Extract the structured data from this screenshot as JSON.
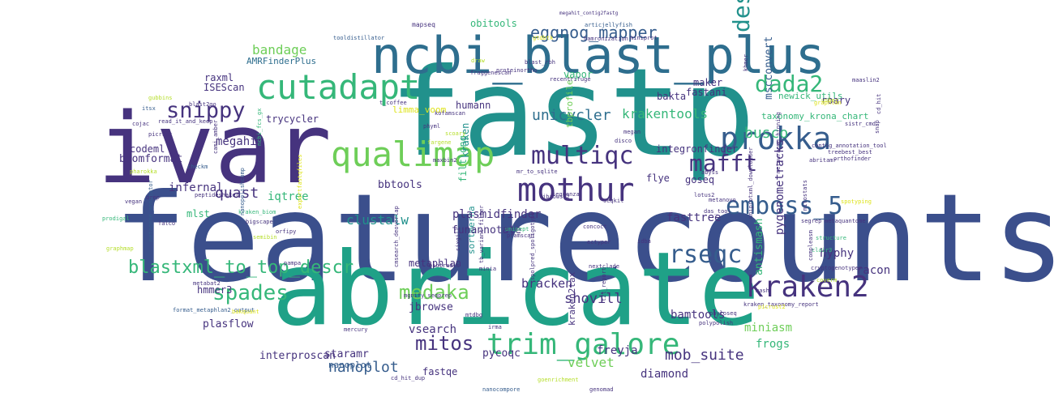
{
  "palette": {
    "navy": "#3b4f8c",
    "purple": "#46337e",
    "blue": "#365d8d",
    "steel": "#2e6e8e",
    "teal": "#21918c",
    "tealgreen": "#1fa187",
    "green": "#35b779",
    "lime": "#6ece58",
    "yellowgreen": "#b5de2b",
    "yellow": "#dde318"
  },
  "words": [
    {
      "text": "featurecounts",
      "color": "navy"
    },
    {
      "text": "fastp",
      "color": "teal"
    },
    {
      "text": "ivar",
      "color": "purple"
    },
    {
      "text": "abricate",
      "color": "tealgreen"
    },
    {
      "text": "ncbi_blast_plus",
      "color": "steel"
    },
    {
      "text": "prokka",
      "color": "blue"
    },
    {
      "text": "cutadapt",
      "color": "green"
    },
    {
      "text": "qualimap",
      "color": "lime"
    },
    {
      "text": "mothur",
      "color": "purple"
    },
    {
      "text": "trim_galore",
      "color": "green"
    },
    {
      "text": "kraken2",
      "color": "purple"
    },
    {
      "text": "emboss_5",
      "color": "blue"
    },
    {
      "text": "multiqc",
      "color": "purple"
    },
    {
      "text": "mafft",
      "color": "purple"
    },
    {
      "text": "dada2",
      "color": "green"
    },
    {
      "text": "deseq2",
      "color": "teal"
    },
    {
      "text": "snippy",
      "color": "purple"
    },
    {
      "text": "rseqc",
      "color": "blue"
    },
    {
      "text": "spades",
      "color": "green"
    },
    {
      "text": "blastxml_to_top_descr",
      "color": "green"
    },
    {
      "text": "medaka",
      "color": "lime"
    },
    {
      "text": "mitos",
      "color": "purple"
    },
    {
      "text": "eggnog_mapper",
      "color": "blue"
    },
    {
      "text": "quast",
      "color": "purple"
    },
    {
      "text": "busco",
      "color": "green"
    },
    {
      "text": "nanoplot",
      "color": "blue"
    },
    {
      "text": "mob_suite",
      "color": "purple"
    },
    {
      "text": "unicycler",
      "color": "steel"
    },
    {
      "text": "krakentools",
      "color": "green"
    },
    {
      "text": "bandage",
      "color": "lime"
    },
    {
      "text": "megahit",
      "color": "purple"
    },
    {
      "text": "clustalw",
      "color": "teal"
    },
    {
      "text": "shovill",
      "color": "purple"
    },
    {
      "text": "bracken",
      "color": "purple"
    },
    {
      "text": "velvet",
      "color": "lime"
    },
    {
      "text": "diamond",
      "color": "purple"
    },
    {
      "text": "fasttree",
      "color": "purple"
    },
    {
      "text": "pygenometracks",
      "color": "purple"
    },
    {
      "text": "bamtools",
      "color": "purple"
    },
    {
      "text": "freyja",
      "color": "purple"
    },
    {
      "text": "frogs",
      "color": "green"
    },
    {
      "text": "miniasm",
      "color": "lime"
    },
    {
      "text": "interproscan",
      "color": "purple"
    },
    {
      "text": "pycoqc",
      "color": "purple"
    },
    {
      "text": "staramr",
      "color": "purple"
    },
    {
      "text": "vsearch",
      "color": "purple"
    },
    {
      "text": "jbrowse",
      "color": "purple"
    },
    {
      "text": "plasflow",
      "color": "purple"
    },
    {
      "text": "hmmer3",
      "color": "purple"
    },
    {
      "text": "metaphlan",
      "color": "purple"
    },
    {
      "text": "sortmerna",
      "color": "teal"
    },
    {
      "text": "kraken2tax",
      "color": "purple"
    },
    {
      "text": "antismash",
      "color": "green"
    },
    {
      "text": "hyphy",
      "color": "purple"
    },
    {
      "text": "racon",
      "color": "purple"
    },
    {
      "text": "plasmidfinder",
      "color": "purple"
    },
    {
      "text": "funannotate",
      "color": "purple"
    },
    {
      "text": "bbtools",
      "color": "purple"
    },
    {
      "text": "iqtree",
      "color": "green"
    },
    {
      "text": "infernal",
      "color": "purple"
    },
    {
      "text": "mlst",
      "color": "green"
    },
    {
      "text": "biomformat",
      "color": "purple"
    },
    {
      "text": "codeml",
      "color": "purple"
    },
    {
      "text": "trycycler",
      "color": "purple"
    },
    {
      "text": "ISEScan",
      "color": "purple"
    },
    {
      "text": "raxml",
      "color": "purple"
    },
    {
      "text": "AMRFinderPlus",
      "color": "steel"
    },
    {
      "text": "obitools",
      "color": "green"
    },
    {
      "text": "humann",
      "color": "purple"
    },
    {
      "text": "limma_voom",
      "color": "yellow"
    },
    {
      "text": "filtlong",
      "color": "green"
    },
    {
      "text": "kraken",
      "color": "teal"
    },
    {
      "text": "tbprofiler",
      "color": "lime"
    },
    {
      "text": "vapor",
      "color": "green"
    },
    {
      "text": "bakta",
      "color": "purple"
    },
    {
      "text": "fastani",
      "color": "purple"
    },
    {
      "text": "maker",
      "color": "purple"
    },
    {
      "text": "mscconvert",
      "color": "blue"
    },
    {
      "text": "newick_utils",
      "color": "green"
    },
    {
      "text": "roary",
      "color": "purple"
    },
    {
      "text": "taxonomy_krona_chart",
      "color": "green"
    },
    {
      "text": "integronfinder",
      "color": "purple"
    },
    {
      "text": "flye",
      "color": "purple"
    },
    {
      "text": "goseq",
      "color": "purple"
    },
    {
      "text": "fastqe",
      "color": "purple"
    },
    {
      "text": "nanoplot",
      "color": "blue"
    },
    {
      "text": "mapseq",
      "color": "purple"
    },
    {
      "text": "megahit_contig2fastg",
      "color": "purple"
    },
    {
      "text": "tooldistillator",
      "color": "blue"
    },
    {
      "text": "gtdbtk",
      "color": "yellow"
    },
    {
      "text": "artic",
      "color": "blue"
    },
    {
      "text": "jellyfish",
      "color": "blue"
    },
    {
      "text": "hamronization",
      "color": "purple"
    },
    {
      "text": "miniprot",
      "color": "purple"
    },
    {
      "text": "blast_rbh",
      "color": "purple"
    },
    {
      "text": "fraggenescan",
      "color": "purple"
    },
    {
      "text": "proteinortho",
      "color": "purple"
    },
    {
      "text": "recentrifuge",
      "color": "purple"
    },
    {
      "text": "draw",
      "color": "yellowgreen"
    },
    {
      "text": "khmer",
      "color": "purple"
    },
    {
      "text": "maaslin2",
      "color": "purple"
    },
    {
      "text": "sistr_cmd",
      "color": "purple"
    },
    {
      "text": "usher",
      "color": "yellowgreen"
    },
    {
      "text": "cd_hit",
      "color": "purple"
    },
    {
      "text": "graphlan",
      "color": "yellow"
    },
    {
      "text": "gubbins",
      "color": "yellowgreen"
    },
    {
      "text": "itsx",
      "color": "blue"
    },
    {
      "text": "blast2go",
      "color": "purple"
    },
    {
      "text": "t_coffee",
      "color": "purple"
    },
    {
      "text": "kofamscan",
      "color": "purple"
    },
    {
      "text": "read_it_and_keep",
      "color": "purple"
    },
    {
      "text": "cojac",
      "color": "purple"
    },
    {
      "text": "picrust",
      "color": "purple"
    },
    {
      "text": "scoary",
      "color": "yellowgreen"
    },
    {
      "text": "megan",
      "color": "purple"
    },
    {
      "text": "fargene",
      "color": "yellowgreen"
    },
    {
      "text": "maxbin2",
      "color": "purple"
    },
    {
      "text": "disco",
      "color": "purple"
    },
    {
      "text": "checkm",
      "color": "blue"
    },
    {
      "text": "cami_amber",
      "color": "purple"
    },
    {
      "text": "phyml",
      "color": "purple"
    },
    {
      "text": "pharokka",
      "color": "yellowgreen"
    },
    {
      "text": "ncbi_fcs_gx",
      "color": "green"
    },
    {
      "text": "mr_to_sqlite",
      "color": "purple"
    },
    {
      "text": "sequenza",
      "color": "purple"
    },
    {
      "text": "abyss",
      "color": "purple"
    },
    {
      "text": "orthofinder",
      "color": "purple"
    },
    {
      "text": "abritamr",
      "color": "purple"
    },
    {
      "text": "contig_annotation_tool",
      "color": "purple"
    },
    {
      "text": "treebest_best",
      "color": "purple"
    },
    {
      "text": "snap",
      "color": "purple"
    },
    {
      "text": "vegan",
      "color": "purple"
    },
    {
      "text": "drep",
      "color": "purple"
    },
    {
      "text": "peptideshaker",
      "color": "purple"
    },
    {
      "text": "kraken_biom",
      "color": "green"
    },
    {
      "text": "jbrowse2",
      "color": "purple"
    },
    {
      "text": "seqkit",
      "color": "purple"
    },
    {
      "text": "lotus2",
      "color": "purple"
    },
    {
      "text": "metanovo",
      "color": "purple"
    },
    {
      "text": "das_tool",
      "color": "purple"
    },
    {
      "text": "spotyping",
      "color": "yellow"
    },
    {
      "text": "metagene_annotator",
      "color": "blue"
    },
    {
      "text": "prodigal",
      "color": "green"
    },
    {
      "text": "falco",
      "color": "purple"
    },
    {
      "text": "bigscape",
      "color": "purple"
    },
    {
      "text": "orfipy",
      "color": "purple"
    },
    {
      "text": "unipept",
      "color": "green"
    },
    {
      "text": "concoct",
      "color": "purple"
    },
    {
      "text": "ectyper",
      "color": "purple"
    },
    {
      "text": "idba",
      "color": "purple"
    },
    {
      "text": "segrep",
      "color": "purple"
    },
    {
      "text": "metaquantome",
      "color": "purple"
    },
    {
      "text": "structure",
      "color": "green"
    },
    {
      "text": "clair3",
      "color": "green"
    },
    {
      "text": "graphmap",
      "color": "yellowgreen"
    },
    {
      "text": "semibin",
      "color": "yellowgreen"
    },
    {
      "text": "pfamscan",
      "color": "purple"
    },
    {
      "text": "pampa",
      "color": "purple"
    },
    {
      "text": "minia",
      "color": "purple"
    },
    {
      "text": "biotradis",
      "color": "purple"
    },
    {
      "text": "nextclade",
      "color": "purple"
    },
    {
      "text": "cryptogenotyper",
      "color": "purple"
    },
    {
      "text": "metabat2",
      "color": "purple"
    },
    {
      "text": "mash",
      "color": "purple"
    },
    {
      "text": "format_metaphlan2_output",
      "color": "blue"
    },
    {
      "text": "kraken_taxonomy_report",
      "color": "purple"
    },
    {
      "text": "coverm",
      "color": "yellowgreen"
    },
    {
      "text": "bakquant",
      "color": "yellow"
    },
    {
      "text": "picrust2",
      "color": "yellow"
    },
    {
      "text": "mgnify_seqprep",
      "color": "purple"
    },
    {
      "text": "mtdbg",
      "color": "purple"
    },
    {
      "text": "phyloseq",
      "color": "purple"
    },
    {
      "text": "polypolish",
      "color": "purple"
    },
    {
      "text": "mercury",
      "color": "purple"
    },
    {
      "text": "irma",
      "color": "purple"
    },
    {
      "text": "cd_hit_dup",
      "color": "purple"
    },
    {
      "text": "nanocompore",
      "color": "blue"
    },
    {
      "text": "goenrichment",
      "color": "yellowgreen"
    },
    {
      "text": "genomad",
      "color": "purple"
    },
    {
      "text": "compleasm",
      "color": "purple"
    },
    {
      "text": "uniprotxml_downloader",
      "color": "purple"
    },
    {
      "text": "mitostats",
      "color": "purple"
    },
    {
      "text": "metawrapmg_binning",
      "color": "purple"
    },
    {
      "text": "nanopolishcomp",
      "color": "blue"
    },
    {
      "text": "exportfastqfiles",
      "color": "yellow"
    },
    {
      "text": "cmsearch_deoverlap",
      "color": "purple"
    },
    {
      "text": "sixgill",
      "color": "purple"
    },
    {
      "text": "tb_variant_filter",
      "color": "purple"
    },
    {
      "text": "t2t_report",
      "color": "purple"
    },
    {
      "text": "spolpred_spoligotype",
      "color": "purple"
    }
  ]
}
